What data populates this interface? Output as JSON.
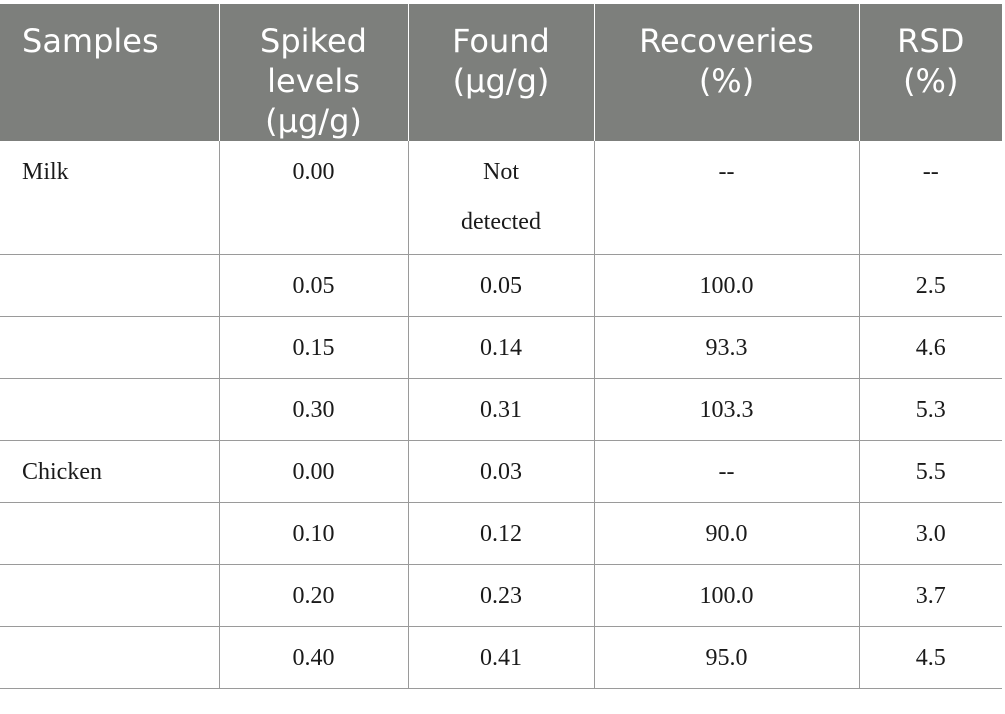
{
  "table": {
    "headers": [
      [
        "Samples"
      ],
      [
        "Spiked",
        "levels",
        "(μg/g)"
      ],
      [
        "Found",
        "(μg/g)"
      ],
      [
        "Recoveries",
        "(%)"
      ],
      [
        "RSD",
        "(%)"
      ]
    ],
    "rows": [
      [
        "Milk",
        "0.00",
        "Not detected",
        "--",
        "--"
      ],
      [
        "",
        "0.05",
        "0.05",
        "100.0",
        "2.5"
      ],
      [
        "",
        "0.15",
        "0.14",
        "93.3",
        "4.6"
      ],
      [
        "",
        "0.30",
        "0.31",
        "103.3",
        "5.3"
      ],
      [
        "Chicken",
        "0.00",
        "0.03",
        "--",
        "5.5"
      ],
      [
        "",
        "0.10",
        "0.12",
        "90.0",
        "3.0"
      ],
      [
        "",
        "0.20",
        "0.23",
        "100.0",
        "3.7"
      ],
      [
        "",
        "0.40",
        "0.41",
        "95.0",
        "4.5"
      ]
    ]
  }
}
